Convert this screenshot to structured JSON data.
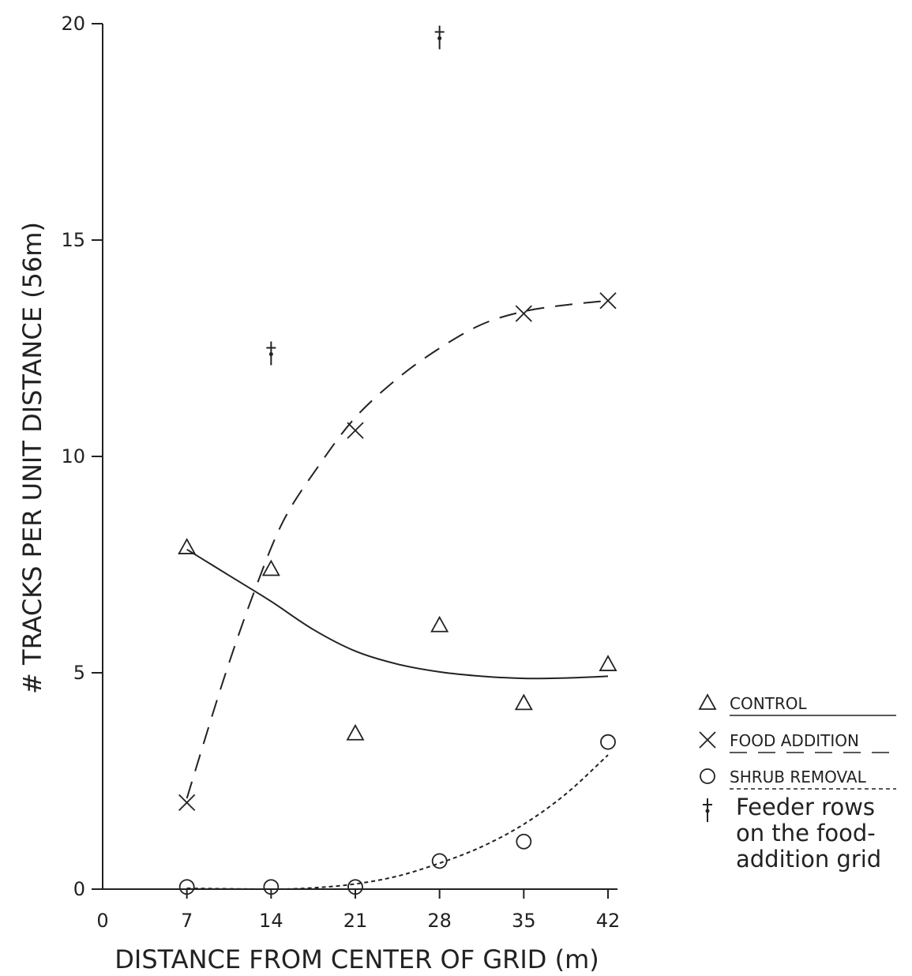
{
  "chart_data": {
    "type": "scatter",
    "title": "",
    "xlabel": "DISTANCE FROM CENTER OF GRID (m)",
    "ylabel": "# TRACKS PER UNIT DISTANCE (56m)",
    "xlim": [
      0,
      42
    ],
    "ylim": [
      0,
      20
    ],
    "x_ticks": [
      0,
      7,
      14,
      21,
      28,
      35,
      42
    ],
    "y_ticks": [
      0,
      5,
      10,
      15,
      20
    ],
    "grid": false,
    "legend_position": "right",
    "series": [
      {
        "name": "CONTROL",
        "marker": "triangle",
        "line_style": "solid",
        "points": [
          [
            7,
            7.9
          ],
          [
            14,
            7.4
          ],
          [
            21,
            3.6
          ],
          [
            28,
            6.1
          ],
          [
            35,
            4.3
          ],
          [
            42,
            5.2
          ]
        ],
        "fit": [
          [
            7,
            7.85
          ],
          [
            10.5,
            7.25
          ],
          [
            14,
            6.65
          ],
          [
            17.5,
            6.0
          ],
          [
            21,
            5.5
          ],
          [
            24.5,
            5.2
          ],
          [
            28,
            5.02
          ],
          [
            31.5,
            4.92
          ],
          [
            35,
            4.87
          ],
          [
            38.5,
            4.88
          ],
          [
            42,
            4.92
          ]
        ]
      },
      {
        "name": "FOOD ADDITION",
        "marker": "x",
        "line_style": "long-dash",
        "points": [
          [
            7,
            2.0
          ],
          [
            21,
            10.6
          ],
          [
            35,
            13.3
          ],
          [
            42,
            13.6
          ]
        ],
        "fit": [
          [
            7,
            2.1
          ],
          [
            10,
            4.8
          ],
          [
            12.5,
            6.8
          ],
          [
            15,
            8.5
          ],
          [
            18,
            9.8
          ],
          [
            21,
            10.9
          ],
          [
            24.5,
            11.8
          ],
          [
            28,
            12.5
          ],
          [
            31.5,
            13.05
          ],
          [
            35,
            13.35
          ],
          [
            38.5,
            13.5
          ],
          [
            42,
            13.6
          ]
        ]
      },
      {
        "name": "SHRUB REMOVAL",
        "marker": "circle",
        "line_style": "short-dash",
        "points": [
          [
            7,
            0.05
          ],
          [
            14,
            0.05
          ],
          [
            21,
            0.05
          ],
          [
            28,
            0.65
          ],
          [
            35,
            1.1
          ],
          [
            42,
            3.4
          ]
        ],
        "fit": [
          [
            7,
            0.02
          ],
          [
            14,
            0.0
          ],
          [
            17.5,
            0.03
          ],
          [
            21,
            0.12
          ],
          [
            24.5,
            0.3
          ],
          [
            28,
            0.6
          ],
          [
            31.5,
            0.98
          ],
          [
            35,
            1.5
          ],
          [
            38.5,
            2.2
          ],
          [
            42,
            3.1
          ]
        ]
      }
    ],
    "feeder_rows": [
      [
        14,
        12.4
      ],
      [
        28,
        19.7
      ]
    ],
    "legend_note": [
      "Feeder rows",
      "on the food-",
      "addition grid"
    ]
  }
}
